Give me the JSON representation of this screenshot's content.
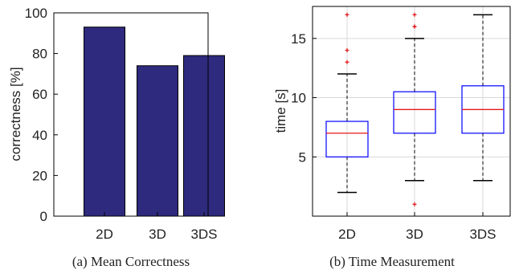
{
  "chart_data": [
    {
      "type": "bar",
      "categories": [
        "2D",
        "3D",
        "3DS"
      ],
      "values": [
        93,
        74,
        79
      ],
      "ylabel": "correctness [%]",
      "ylim": [
        0,
        100
      ],
      "yticks": [
        0,
        20,
        40,
        60,
        80,
        100
      ],
      "grid": false,
      "bar_color": "#2e2a7e",
      "caption": "(a) Mean Correctness"
    },
    {
      "type": "box",
      "categories": [
        "2D",
        "3D",
        "3DS"
      ],
      "series": [
        {
          "category": "2D",
          "q1": 5,
          "median": 7,
          "q3": 8,
          "whisker_low": 2,
          "whisker_high": 12,
          "outliers": [
            13,
            14,
            17
          ]
        },
        {
          "category": "3D",
          "q1": 7,
          "median": 9,
          "q3": 10.5,
          "whisker_low": 3,
          "whisker_high": 15,
          "outliers": [
            1,
            16,
            16,
            17
          ]
        },
        {
          "category": "3DS",
          "q1": 7,
          "median": 9,
          "q3": 11,
          "whisker_low": 3,
          "whisker_high": 17,
          "outliers": []
        }
      ],
      "ylabel": "time [s]",
      "ylim": [
        0,
        17.7
      ],
      "yticks": [
        5,
        10,
        15
      ],
      "grid": true,
      "box_color": "#0000ff",
      "median_color": "#e31a1c",
      "outlier_color": "#e31a1c",
      "caption": "(b) Time Measurement"
    }
  ]
}
